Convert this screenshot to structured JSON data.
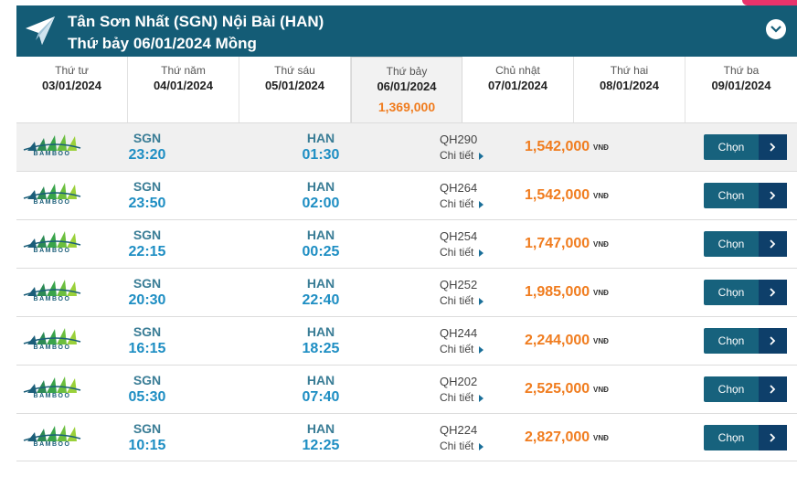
{
  "header": {
    "route": "Tân Sơn Nhất (SGN) Nội Bài (HAN)",
    "date": "Thứ bảy 06/01/2024 Mồng"
  },
  "days": [
    {
      "name": "Thứ tư",
      "date": "03/01/2024",
      "price": ""
    },
    {
      "name": "Thứ năm",
      "date": "04/01/2024",
      "price": ""
    },
    {
      "name": "Thứ sáu",
      "date": "05/01/2024",
      "price": ""
    },
    {
      "name": "Thứ bảy",
      "date": "06/01/2024",
      "price": "1,369,000"
    },
    {
      "name": "Chủ nhật",
      "date": "07/01/2024",
      "price": ""
    },
    {
      "name": "Thứ hai",
      "date": "08/01/2024",
      "price": ""
    },
    {
      "name": "Thứ ba",
      "date": "09/01/2024",
      "price": ""
    }
  ],
  "airline_logo_text": "BAMBOO",
  "detail_label": "Chi tiết",
  "currency": "VNĐ",
  "select_label": "Chọn",
  "flights": [
    {
      "from": "SGN",
      "dep": "23:20",
      "to": "HAN",
      "arr": "01:30",
      "code": "QH290",
      "price": "1,542,000"
    },
    {
      "from": "SGN",
      "dep": "23:50",
      "to": "HAN",
      "arr": "02:00",
      "code": "QH264",
      "price": "1,542,000"
    },
    {
      "from": "SGN",
      "dep": "22:15",
      "to": "HAN",
      "arr": "00:25",
      "code": "QH254",
      "price": "1,747,000"
    },
    {
      "from": "SGN",
      "dep": "20:30",
      "to": "HAN",
      "arr": "22:40",
      "code": "QH252",
      "price": "1,985,000"
    },
    {
      "from": "SGN",
      "dep": "16:15",
      "to": "HAN",
      "arr": "18:25",
      "code": "QH244",
      "price": "2,244,000"
    },
    {
      "from": "SGN",
      "dep": "05:30",
      "to": "HAN",
      "arr": "07:40",
      "code": "QH202",
      "price": "2,525,000"
    },
    {
      "from": "SGN",
      "dep": "10:15",
      "to": "HAN",
      "arr": "12:25",
      "code": "QH224",
      "price": "2,827,000"
    }
  ],
  "colors": {
    "header_bg": "#145c76",
    "price": "#f07c1e",
    "time": "#1e8ec3",
    "button": "#17627d",
    "button_arrow": "#0e3f6a"
  },
  "icons": {
    "plane": "paper-plane-icon",
    "toggle": "chevron-down-icon",
    "detail": "triangle-right-icon",
    "select": "chevron-right-icon"
  }
}
